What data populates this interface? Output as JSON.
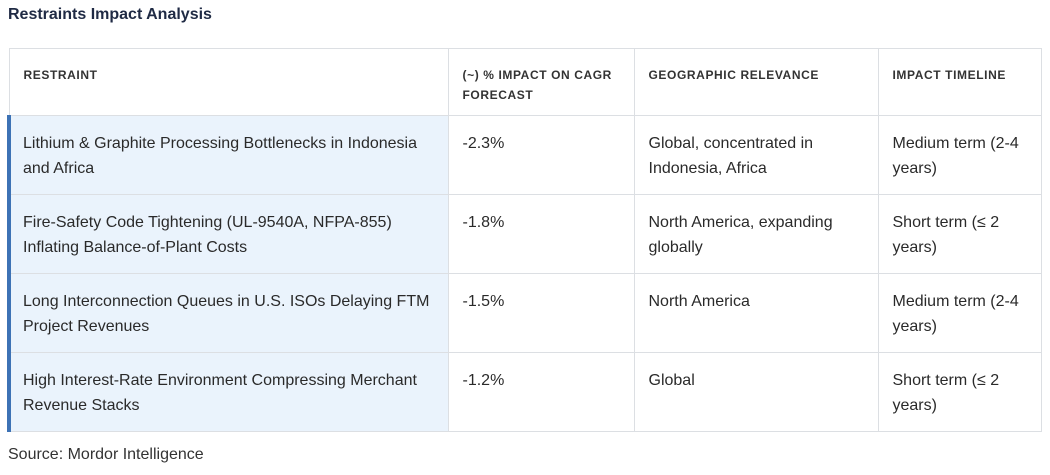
{
  "title": "Restraints Impact Analysis",
  "columns": [
    "RESTRAINT",
    "(~) % IMPACT ON CAGR FORECAST",
    "GEOGRAPHIC RELEVANCE",
    "IMPACT TIMELINE"
  ],
  "rows": [
    {
      "restraint": "Lithium & Graphite Processing Bottlenecks in Indonesia and Africa",
      "impact": "-2.3%",
      "geography": "Global, concentrated in Indonesia, Africa",
      "timeline": "Medium term (2-4 years)"
    },
    {
      "restraint": "Fire-Safety Code Tightening (UL-9540A, NFPA-855) Inflating Balance-of-Plant Costs",
      "impact": "-1.8%",
      "geography": "North America, expanding globally",
      "timeline": "Short term (≤ 2 years)"
    },
    {
      "restraint": "Long Interconnection Queues in U.S. ISOs Delaying FTM Project Revenues",
      "impact": "-1.5%",
      "geography": "North America",
      "timeline": "Medium term (2-4 years)"
    },
    {
      "restraint": "High Interest-Rate Environment Compressing Merchant Revenue Stacks",
      "impact": "-1.2%",
      "geography": "Global",
      "timeline": "Short term (≤ 2 years)"
    }
  ],
  "source": "Source: Mordor Intelligence",
  "colors": {
    "accent_bar": "#3d72b5",
    "highlight_cell": "#eaf3fc",
    "title": "#1f2a44",
    "border": "#dcdfe3"
  }
}
